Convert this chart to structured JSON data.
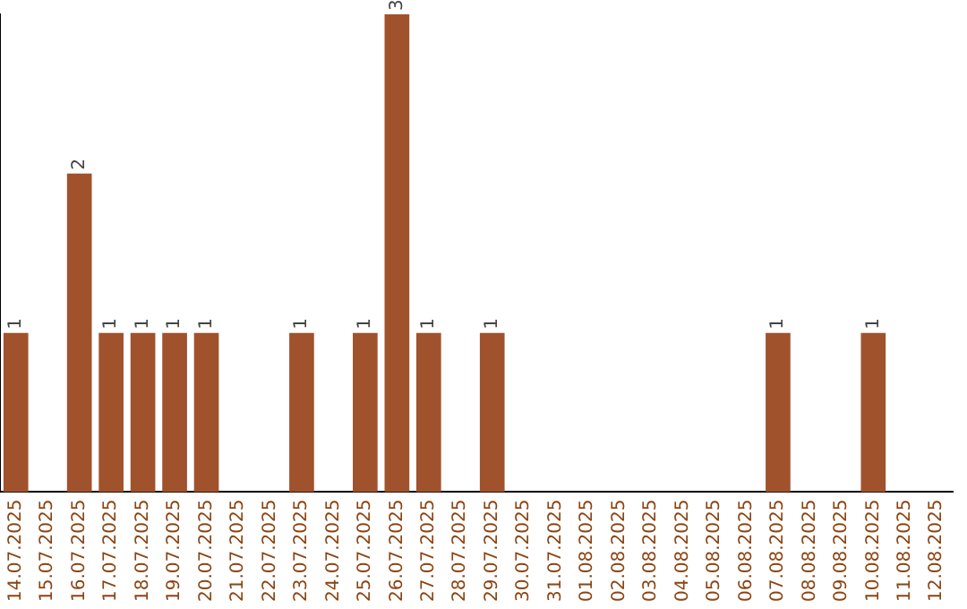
{
  "chart_data": {
    "type": "bar",
    "categories": [
      "14.07.2025",
      "15.07.2025",
      "16.07.2025",
      "17.07.2025",
      "18.07.2025",
      "19.07.2025",
      "20.07.2025",
      "21.07.2025",
      "22.07.2025",
      "23.07.2025",
      "24.07.2025",
      "25.07.2025",
      "26.07.2025",
      "27.07.2025",
      "28.07.2025",
      "29.07.2025",
      "30.07.2025",
      "31.07.2025",
      "01.08.2025",
      "02.08.2025",
      "03.08.2025",
      "04.08.2025",
      "05.08.2025",
      "06.08.2025",
      "07.08.2025",
      "08.08.2025",
      "09.08.2025",
      "10.08.2025",
      "11.08.2025",
      "12.08.2025"
    ],
    "values": [
      1,
      0,
      2,
      1,
      1,
      1,
      1,
      0,
      0,
      1,
      0,
      1,
      3,
      1,
      0,
      1,
      0,
      0,
      0,
      0,
      0,
      0,
      0,
      0,
      1,
      0,
      0,
      1,
      0,
      0
    ],
    "value_labels": [
      "1",
      null,
      "2",
      "1",
      "1",
      "1",
      "1",
      null,
      null,
      "1",
      null,
      "1",
      "3",
      "1",
      null,
      "1",
      null,
      null,
      null,
      null,
      null,
      null,
      null,
      null,
      "1",
      null,
      null,
      "1",
      null,
      null
    ],
    "color": "#a0522d",
    "grid": false,
    "legend": false
  }
}
